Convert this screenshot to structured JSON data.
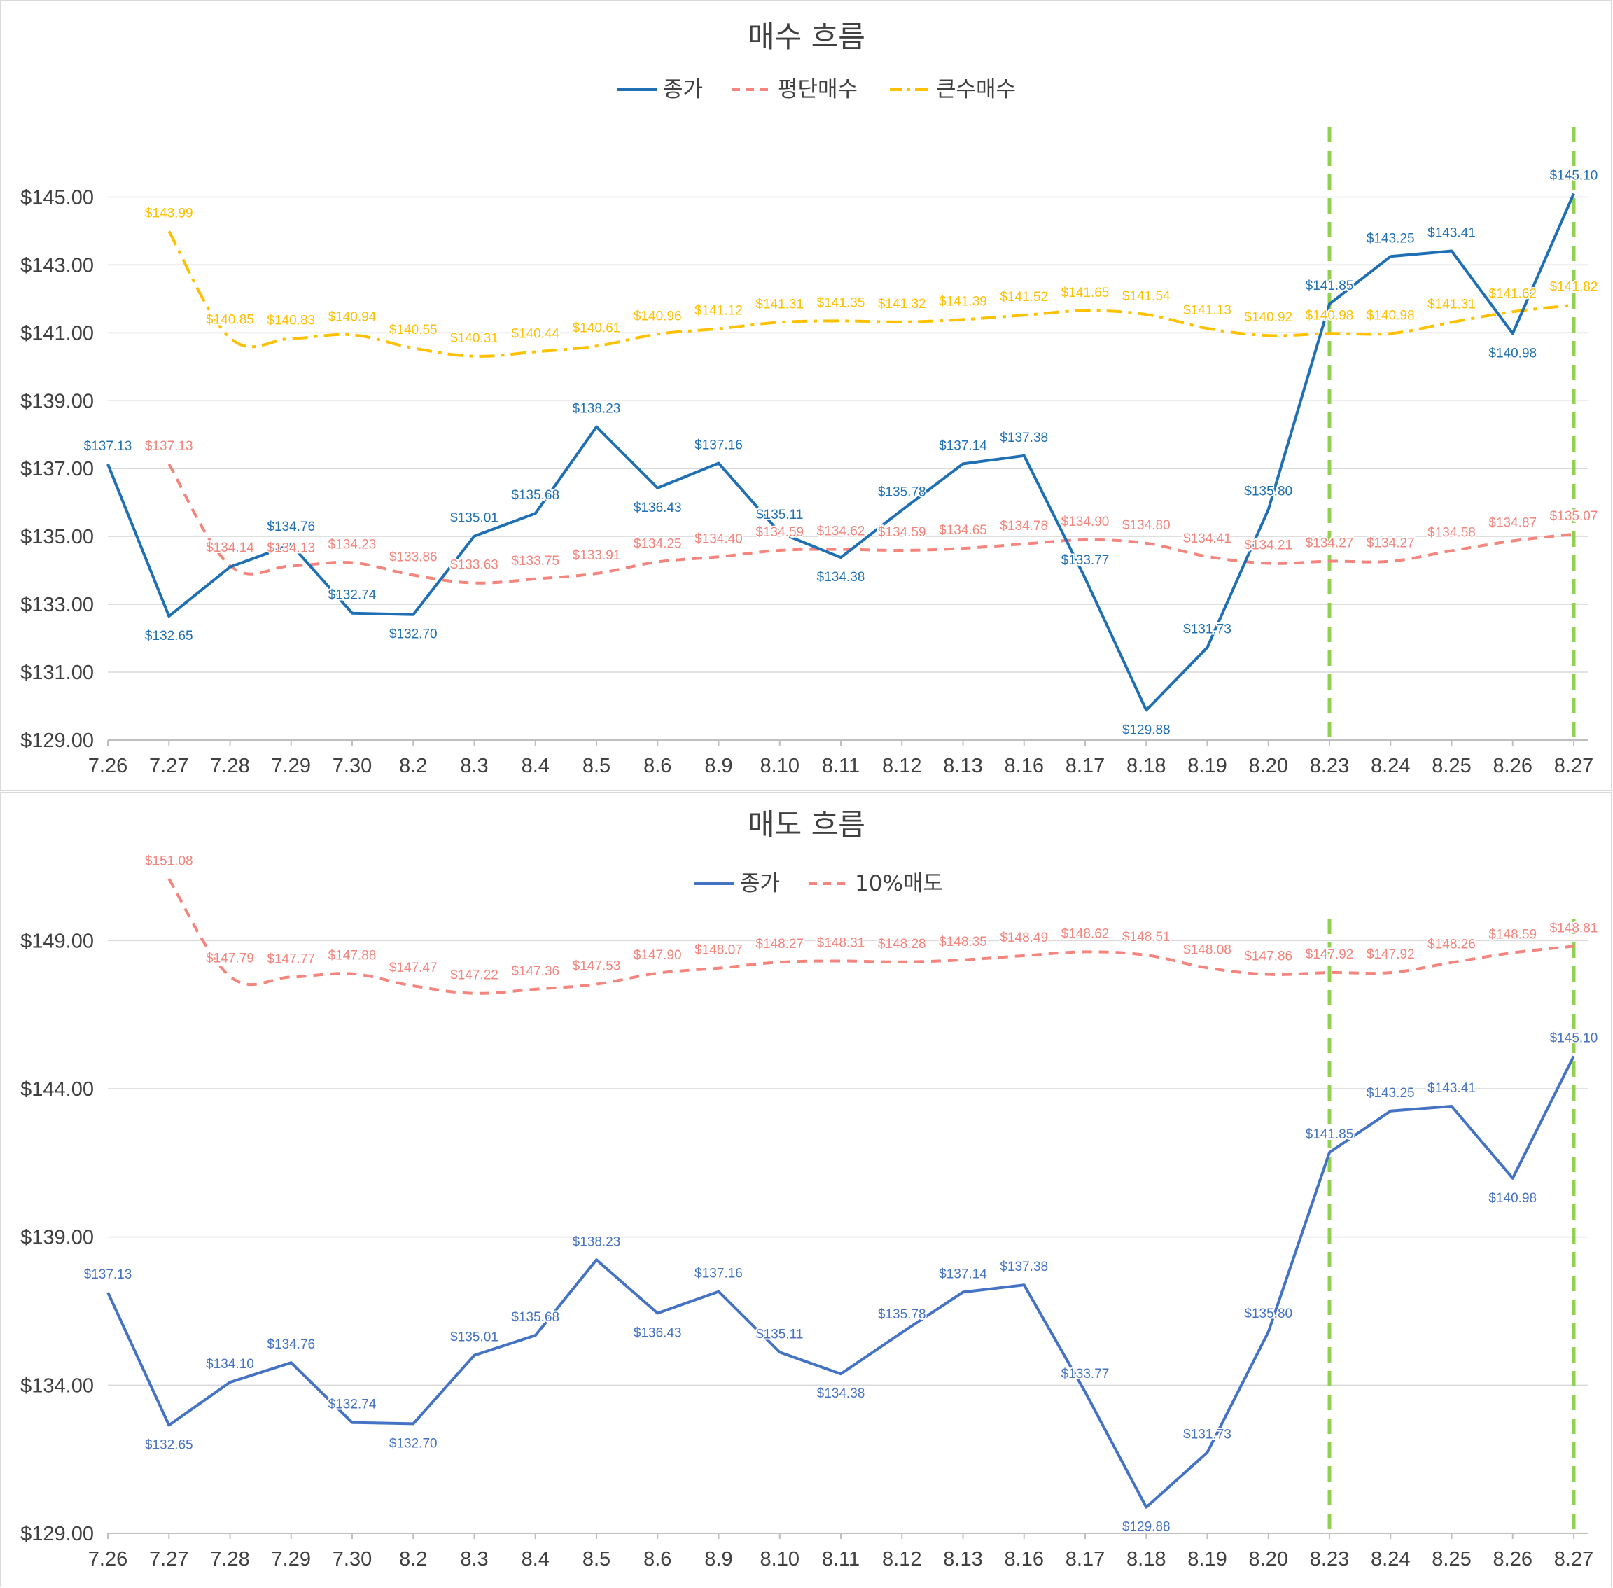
{
  "colors": {
    "close": "#1f6fb5",
    "close2": "#4472c4",
    "avg_buy": "#f4847c",
    "big_buy": "#ffc000",
    "sell10": "#f4847c",
    "marker": "#92d050",
    "grid": "#d9d9d9"
  },
  "chart_data": [
    {
      "type": "line",
      "title": "매수 흐름",
      "categories": [
        "7.26",
        "7.27",
        "7.28",
        "7.29",
        "7.30",
        "8.2",
        "8.3",
        "8.4",
        "8.5",
        "8.6",
        "8.9",
        "8.10",
        "8.11",
        "8.12",
        "8.13",
        "8.16",
        "8.17",
        "8.18",
        "8.19",
        "8.20",
        "8.23",
        "8.24",
        "8.25",
        "8.26",
        "8.27"
      ],
      "ylim": [
        129,
        146
      ],
      "yticks": [
        129,
        131,
        133,
        135,
        137,
        139,
        141,
        143,
        145
      ],
      "ytick_labels": [
        "$129.00",
        "$131.00",
        "$133.00",
        "$135.00",
        "$137.00",
        "$139.00",
        "$141.00",
        "$143.00",
        "$145.00"
      ],
      "legend_position": "top",
      "grid": true,
      "vertical_markers": [
        "8.23",
        "8.27"
      ],
      "series": [
        {
          "name": "종가",
          "style": "solid",
          "color": "#1f6fb5",
          "values": [
            137.13,
            132.65,
            134.1,
            134.76,
            132.74,
            132.7,
            135.01,
            135.68,
            138.23,
            136.43,
            137.16,
            135.11,
            134.38,
            135.78,
            137.14,
            137.38,
            133.77,
            129.88,
            131.73,
            135.8,
            141.85,
            143.25,
            143.41,
            140.98,
            145.1
          ],
          "labels": [
            "$137.13",
            "$132.65",
            "",
            "$134.76",
            "$132.74",
            "$132.70",
            "$135.01",
            "$135.68",
            "$138.23",
            "$136.43",
            "$137.16",
            "$135.11",
            "$134.38",
            "$135.78",
            "$137.14",
            "$137.38",
            "$133.77",
            "$129.88",
            "$131.73",
            "$135.80",
            "$141.85",
            "$143.25",
            "$143.41",
            "$140.98",
            "$145.10"
          ]
        },
        {
          "name": "평단매수",
          "style": "dash",
          "color": "#f4847c",
          "values": [
            null,
            137.13,
            134.14,
            134.13,
            134.23,
            133.86,
            133.63,
            133.75,
            133.91,
            134.25,
            134.4,
            134.59,
            134.62,
            134.59,
            134.65,
            134.78,
            134.9,
            134.8,
            134.41,
            134.21,
            134.27,
            134.27,
            134.58,
            134.87,
            135.07
          ],
          "labels": [
            "",
            "$137.13",
            "$134.14",
            "$134.13",
            "$134.23",
            "$133.86",
            "$133.63",
            "$133.75",
            "$133.91",
            "$134.25",
            "$134.40",
            "$134.59",
            "$134.62",
            "$134.59",
            "$134.65",
            "$134.78",
            "$134.90",
            "$134.80",
            "$134.41",
            "$134.21",
            "$134.27",
            "$134.27",
            "$134.58",
            "$134.87",
            "$135.07"
          ]
        },
        {
          "name": "큰수매수",
          "style": "dashdot",
          "color": "#ffc000",
          "values": [
            null,
            143.99,
            140.85,
            140.83,
            140.94,
            140.55,
            140.31,
            140.44,
            140.61,
            140.96,
            141.12,
            141.31,
            141.35,
            141.32,
            141.39,
            141.52,
            141.65,
            141.54,
            141.13,
            140.92,
            140.98,
            140.98,
            141.31,
            141.62,
            141.82
          ],
          "labels": [
            "",
            "$143.99",
            "$140.85",
            "$140.83",
            "$140.94",
            "$140.55",
            "$140.31",
            "$140.44",
            "$140.61",
            "$140.96",
            "$141.12",
            "$141.31",
            "$141.35",
            "$141.32",
            "$141.39",
            "$141.52",
            "$141.65",
            "$141.54",
            "$141.13",
            "$140.92",
            "$140.98",
            "$140.98",
            "$141.31",
            "$141.62",
            "$141.82"
          ]
        }
      ]
    },
    {
      "type": "line",
      "title": "매도 흐름",
      "categories": [
        "7.26",
        "7.27",
        "7.28",
        "7.29",
        "7.30",
        "8.2",
        "8.3",
        "8.4",
        "8.5",
        "8.6",
        "8.9",
        "8.10",
        "8.11",
        "8.12",
        "8.13",
        "8.16",
        "8.17",
        "8.18",
        "8.19",
        "8.20",
        "8.23",
        "8.24",
        "8.25",
        "8.26",
        "8.27"
      ],
      "ylim": [
        129,
        153
      ],
      "yticks": [
        129,
        134,
        139,
        144,
        149
      ],
      "ytick_labels": [
        "$129.00",
        "$134.00",
        "$139.00",
        "$144.00",
        "$149.00"
      ],
      "legend_position": "top",
      "grid": true,
      "vertical_markers": [
        "8.23",
        "8.27"
      ],
      "series": [
        {
          "name": "종가",
          "style": "solid",
          "color": "#4472c4",
          "values": [
            137.13,
            132.65,
            134.1,
            134.76,
            132.74,
            132.7,
            135.01,
            135.68,
            138.23,
            136.43,
            137.16,
            135.11,
            134.38,
            135.78,
            137.14,
            137.38,
            133.77,
            129.88,
            131.73,
            135.8,
            141.85,
            143.25,
            143.41,
            140.98,
            145.1
          ],
          "labels": [
            "$137.13",
            "$132.65",
            "$134.10",
            "$134.76",
            "$132.74",
            "$132.70",
            "$135.01",
            "$135.68",
            "$138.23",
            "$136.43",
            "$137.16",
            "$135.11",
            "$134.38",
            "$135.78",
            "$137.14",
            "$137.38",
            "$133.77",
            "$129.88",
            "$131.73",
            "$135.80",
            "$141.85",
            "$143.25",
            "$143.41",
            "$140.98",
            "$145.10"
          ]
        },
        {
          "name": "10%매도",
          "style": "dash",
          "color": "#f4847c",
          "values": [
            null,
            151.08,
            147.79,
            147.77,
            147.88,
            147.47,
            147.22,
            147.36,
            147.53,
            147.9,
            148.07,
            148.27,
            148.31,
            148.28,
            148.35,
            148.49,
            148.62,
            148.51,
            148.08,
            147.86,
            147.92,
            147.92,
            148.26,
            148.59,
            148.81
          ],
          "labels": [
            "",
            "$151.08",
            "$147.79",
            "$147.77",
            "$147.88",
            "$147.47",
            "$147.22",
            "$147.36",
            "$147.53",
            "$147.90",
            "$148.07",
            "$148.27",
            "$148.31",
            "$148.28",
            "$148.35",
            "$148.49",
            "$148.62",
            "$148.51",
            "$148.08",
            "$147.86",
            "$147.92",
            "$147.92",
            "$148.26",
            "$148.59",
            "$148.81"
          ]
        }
      ]
    }
  ]
}
